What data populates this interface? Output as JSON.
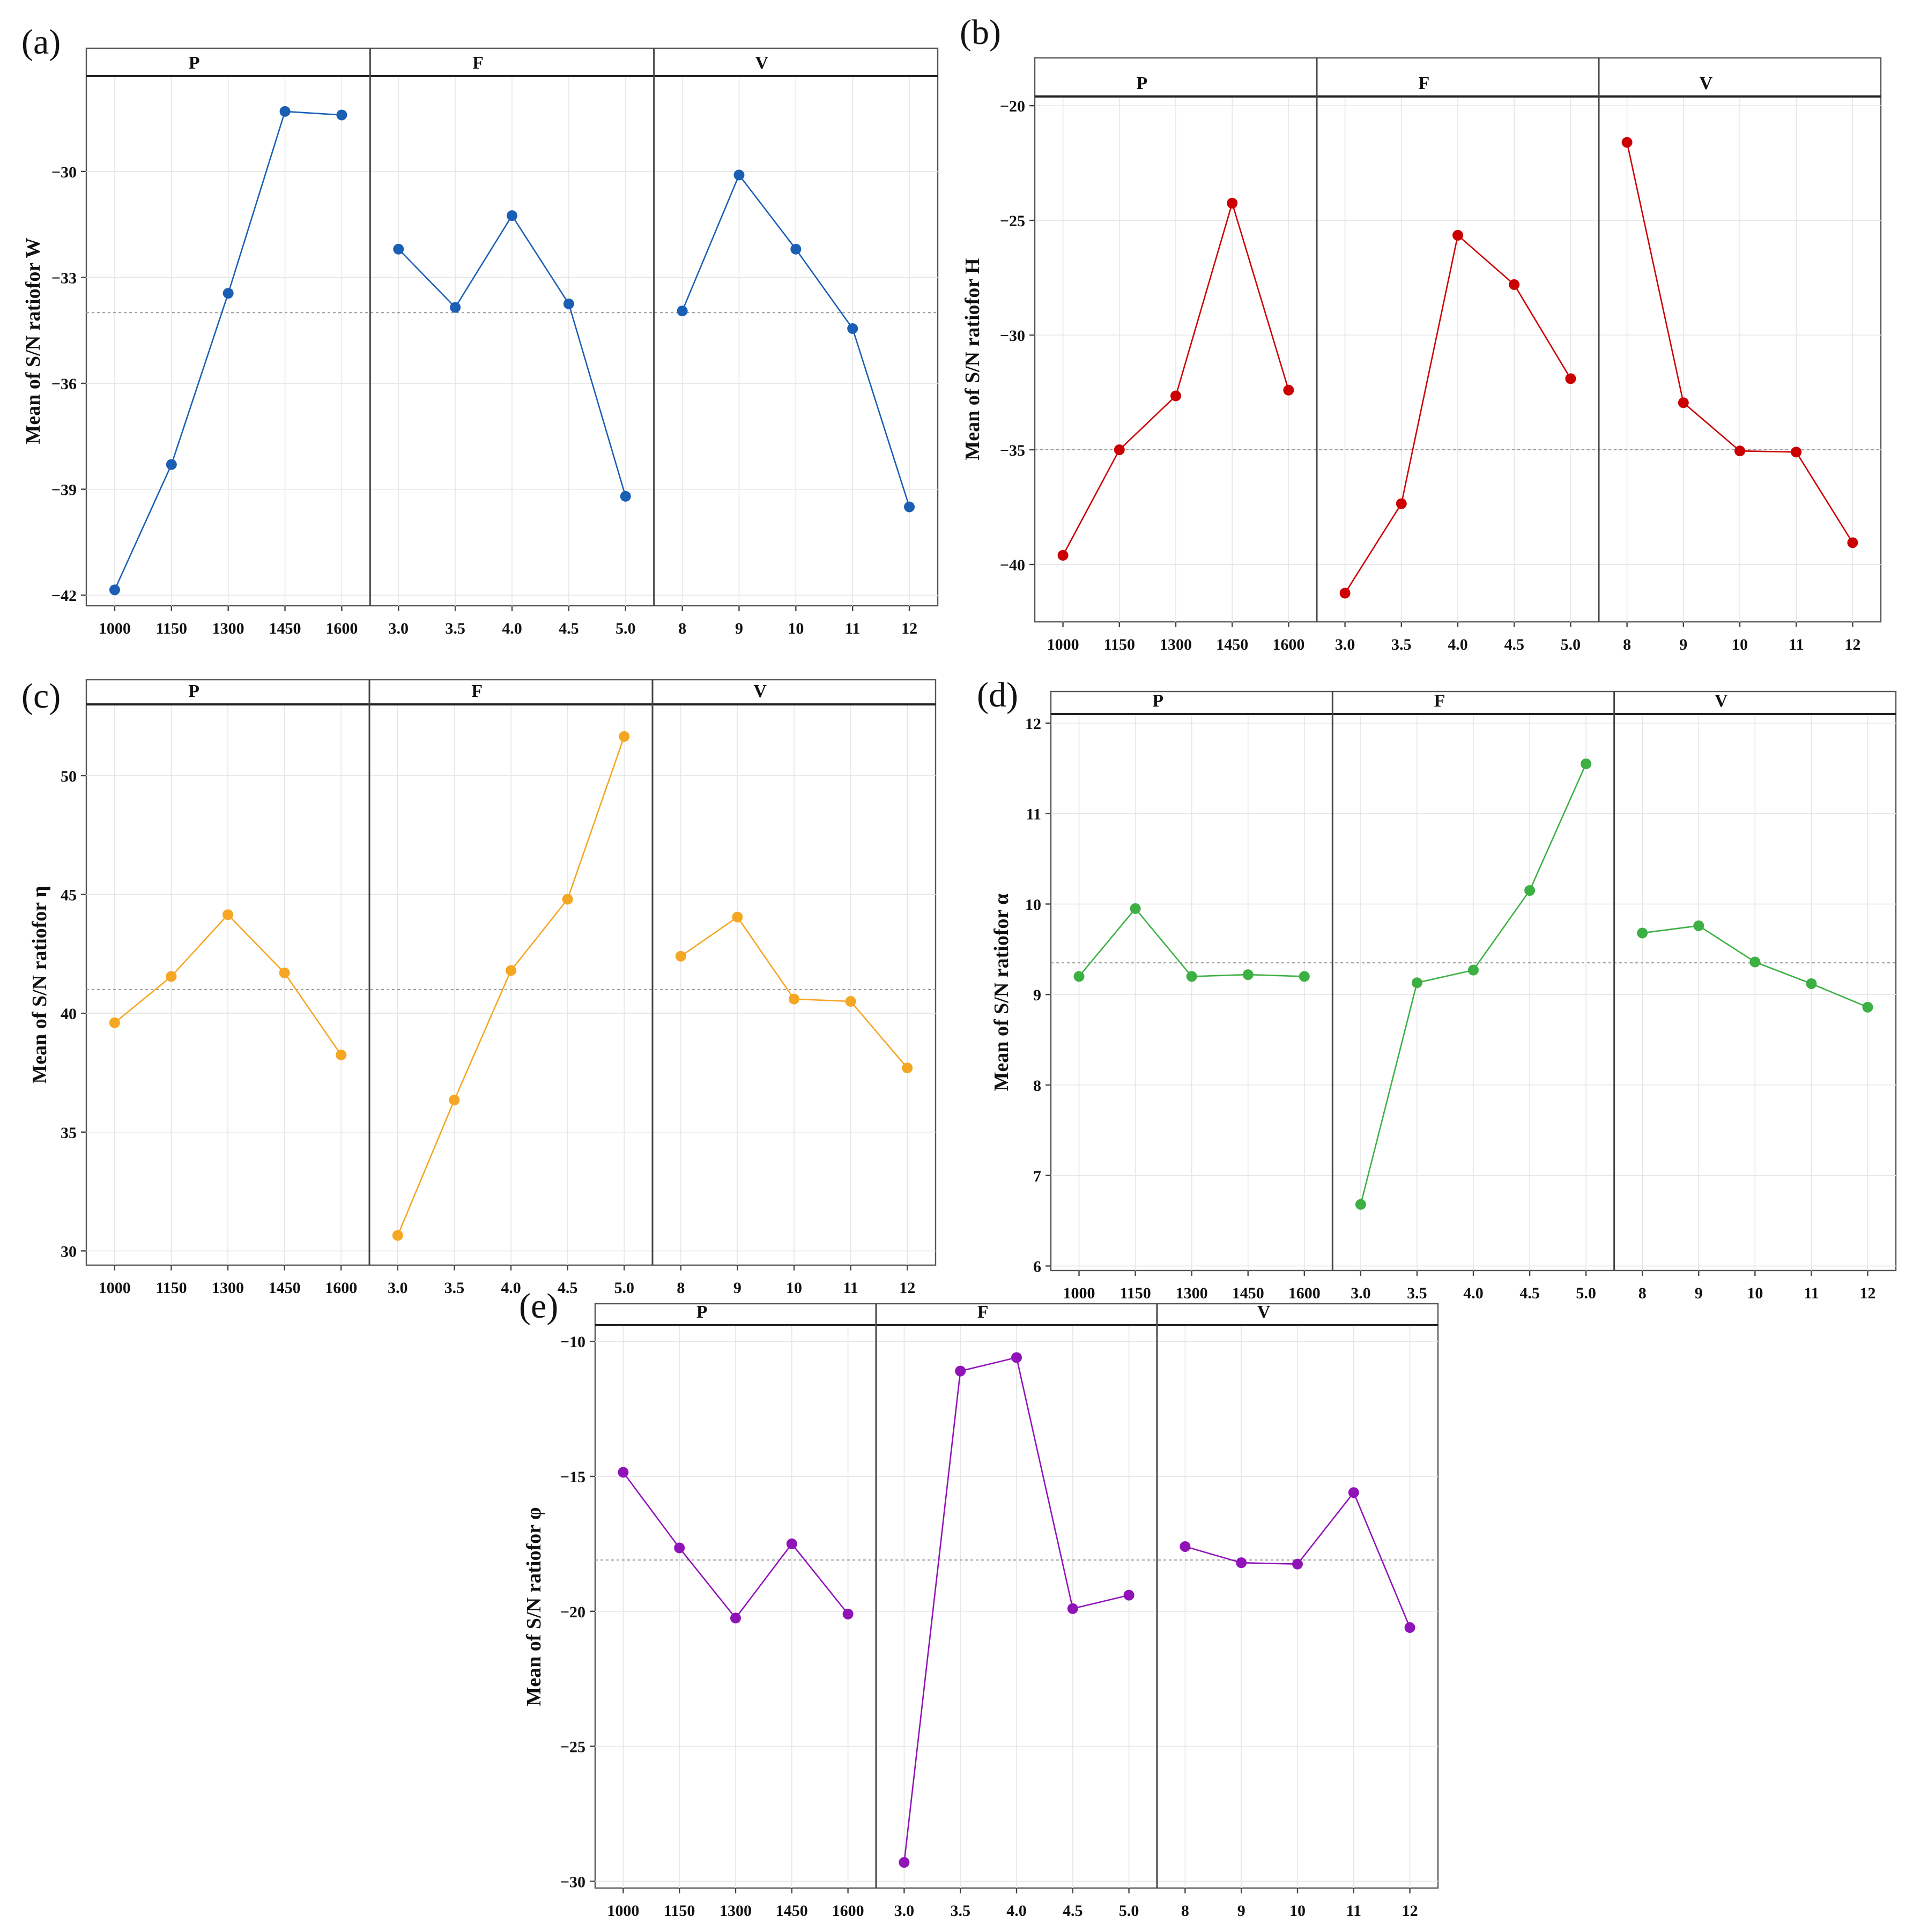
{
  "figure": {
    "y_axis_prefix": "Mean of S/N ratiofor ",
    "factor_levels": {
      "P": [
        "1000",
        "1150",
        "1300",
        "1450",
        "1600"
      ],
      "F": [
        "3.0",
        "3.5",
        "4.0",
        "4.5",
        "5.0"
      ],
      "V": [
        "8",
        "9",
        "10",
        "11",
        "12"
      ]
    }
  },
  "chart_data": [
    {
      "type": "line",
      "panel": "(a)",
      "response": "W",
      "ylabel": "Mean of S/N ratiofor W",
      "color": "#1a5fb4",
      "ylim": [
        -42.3,
        -27.3
      ],
      "yticks": [
        -42,
        -39,
        -36,
        -33,
        -30
      ],
      "grand_mean": -34.0,
      "facets": [
        {
          "label": "P",
          "categories": [
            "1000",
            "1150",
            "1300",
            "1450",
            "1600"
          ],
          "values": [
            -41.85,
            -38.3,
            -33.45,
            -28.3,
            -28.4
          ]
        },
        {
          "label": "F",
          "categories": [
            "3.0",
            "3.5",
            "4.0",
            "4.5",
            "5.0"
          ],
          "values": [
            -32.2,
            -33.85,
            -31.25,
            -33.75,
            -39.2
          ]
        },
        {
          "label": "V",
          "categories": [
            "8",
            "9",
            "10",
            "11",
            "12"
          ],
          "values": [
            -33.95,
            -30.1,
            -32.2,
            -34.45,
            -39.5
          ]
        }
      ]
    },
    {
      "type": "line",
      "panel": "(b)",
      "response": "H",
      "ylabel": "Mean of S/N ratiofor H",
      "color": "#cc0000",
      "ylim": [
        -42.5,
        -19.6
      ],
      "yticks": [
        -40,
        -35,
        -30,
        -25,
        -20
      ],
      "grand_mean": -35.0,
      "facets": [
        {
          "label": "P",
          "categories": [
            "1000",
            "1150",
            "1300",
            "1450",
            "1600"
          ],
          "values": [
            -39.6,
            -35.0,
            -32.65,
            -24.25,
            -32.4
          ]
        },
        {
          "label": "F",
          "categories": [
            "3.0",
            "3.5",
            "4.0",
            "4.5",
            "5.0"
          ],
          "values": [
            -41.25,
            -37.35,
            -25.65,
            -27.8,
            -31.9
          ]
        },
        {
          "label": "V",
          "categories": [
            "8",
            "9",
            "10",
            "11",
            "12"
          ],
          "values": [
            -21.6,
            -32.95,
            -35.05,
            -35.1,
            -39.05
          ]
        }
      ]
    },
    {
      "type": "line",
      "panel": "(c)",
      "response": "η",
      "ylabel": "Mean of S/N ratiofor η",
      "color": "#f5a623",
      "ylim": [
        29.4,
        53.0
      ],
      "yticks": [
        30,
        35,
        40,
        45,
        50
      ],
      "grand_mean": 41.0,
      "facets": [
        {
          "label": "P",
          "categories": [
            "1000",
            "1150",
            "1300",
            "1450",
            "1600"
          ],
          "values": [
            39.6,
            41.55,
            44.15,
            41.7,
            38.25
          ]
        },
        {
          "label": "F",
          "categories": [
            "3.0",
            "3.5",
            "4.0",
            "4.5",
            "5.0"
          ],
          "values": [
            30.65,
            36.35,
            41.8,
            44.8,
            51.65
          ]
        },
        {
          "label": "V",
          "categories": [
            "8",
            "9",
            "10",
            "11",
            "12"
          ],
          "values": [
            42.4,
            44.05,
            40.6,
            40.5,
            37.7
          ]
        }
      ]
    },
    {
      "type": "line",
      "panel": "(d)",
      "response": "α",
      "ylabel": "Mean of S/N ratiofor α",
      "color": "#3cb043",
      "ylim": [
        5.95,
        12.1
      ],
      "yticks": [
        6,
        7,
        8,
        9,
        10,
        11,
        12
      ],
      "grand_mean": 9.35,
      "facets": [
        {
          "label": "P",
          "categories": [
            "1000",
            "1150",
            "1300",
            "1450",
            "1600"
          ],
          "values": [
            9.2,
            9.95,
            9.2,
            9.22,
            9.2
          ]
        },
        {
          "label": "F",
          "categories": [
            "3.0",
            "3.5",
            "4.0",
            "4.5",
            "5.0"
          ],
          "values": [
            6.68,
            9.13,
            9.27,
            10.15,
            11.55
          ]
        },
        {
          "label": "V",
          "categories": [
            "8",
            "9",
            "10",
            "11",
            "12"
          ],
          "values": [
            9.68,
            9.76,
            9.36,
            9.12,
            8.86
          ]
        }
      ]
    },
    {
      "type": "line",
      "panel": "(e)",
      "response": "φ",
      "ylabel": "Mean of S/N ratiofor φ",
      "color": "#9013b8",
      "ylim": [
        -30.25,
        -9.4
      ],
      "yticks": [
        -30,
        -25,
        -20,
        -15,
        -10
      ],
      "grand_mean": -18.1,
      "facets": [
        {
          "label": "P",
          "categories": [
            "1000",
            "1150",
            "1300",
            "1450",
            "1600"
          ],
          "values": [
            -14.85,
            -17.65,
            -20.25,
            -17.5,
            -20.1
          ]
        },
        {
          "label": "F",
          "categories": [
            "3.0",
            "3.5",
            "4.0",
            "4.5",
            "5.0"
          ],
          "values": [
            -29.3,
            -11.1,
            -10.6,
            -19.9,
            -19.4
          ]
        },
        {
          "label": "V",
          "categories": [
            "8",
            "9",
            "10",
            "11",
            "12"
          ],
          "values": [
            -17.6,
            -18.2,
            -18.25,
            -15.6,
            -20.6
          ]
        }
      ]
    }
  ]
}
